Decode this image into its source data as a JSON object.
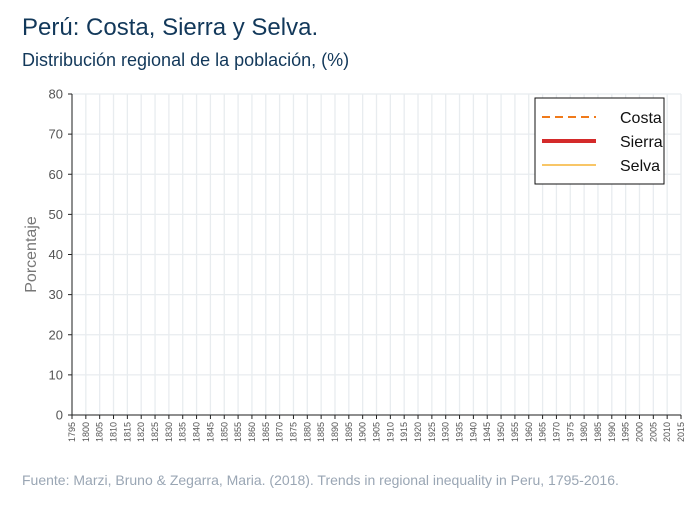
{
  "title": "Perú: Costa, Sierra y Selva.",
  "subtitle": "Distribución regional de la población,  (%)",
  "source": "Fuente: Marzi, Bruno & Zegarra, Maria. (2018). Trends in regional inequality in Peru, 1795-2016.",
  "colors": {
    "title": "#12385a",
    "axis_text": "#555555",
    "grid": "#e8ecef",
    "costa": "#f07a1a",
    "sierra": "#d42a2a",
    "selva": "#f5b335"
  },
  "chart_data": {
    "type": "line",
    "title": "Perú: Costa, Sierra y Selva.",
    "subtitle": "Distribución regional de la población,  (%)",
    "xlabel": "",
    "ylabel": "Porcentaje",
    "xlim": [
      1795,
      2015
    ],
    "ylim": [
      0,
      80
    ],
    "yticks": [
      0,
      10,
      20,
      30,
      40,
      50,
      60,
      70,
      80
    ],
    "xticks": [
      "1795",
      "1800",
      "1805",
      "1810",
      "1815",
      "1820",
      "1825",
      "1830",
      "1835",
      "1840",
      "1845",
      "1850",
      "1855",
      "1860",
      "1865",
      "1870",
      "1875",
      "1880",
      "1885",
      "1890",
      "1895",
      "1900",
      "1905",
      "1910",
      "1915",
      "1920",
      "1925",
      "1930",
      "1935",
      "1940",
      "1945",
      "1950",
      "1955",
      "1960",
      "1965",
      "1970",
      "1975",
      "1980",
      "1985",
      "1990",
      "1995",
      "2000",
      "2005",
      "2010",
      "2015"
    ],
    "grid": true,
    "legend_position": "top-right",
    "series": [
      {
        "name": "Costa",
        "style": "dashed",
        "color": "#f07a1a",
        "x": [],
        "y": []
      },
      {
        "name": "Sierra",
        "style": "solid-thick",
        "color": "#d42a2a",
        "x": [],
        "y": []
      },
      {
        "name": "Selva",
        "style": "solid-thin",
        "color": "#f5b335",
        "x": [],
        "y": []
      }
    ]
  }
}
